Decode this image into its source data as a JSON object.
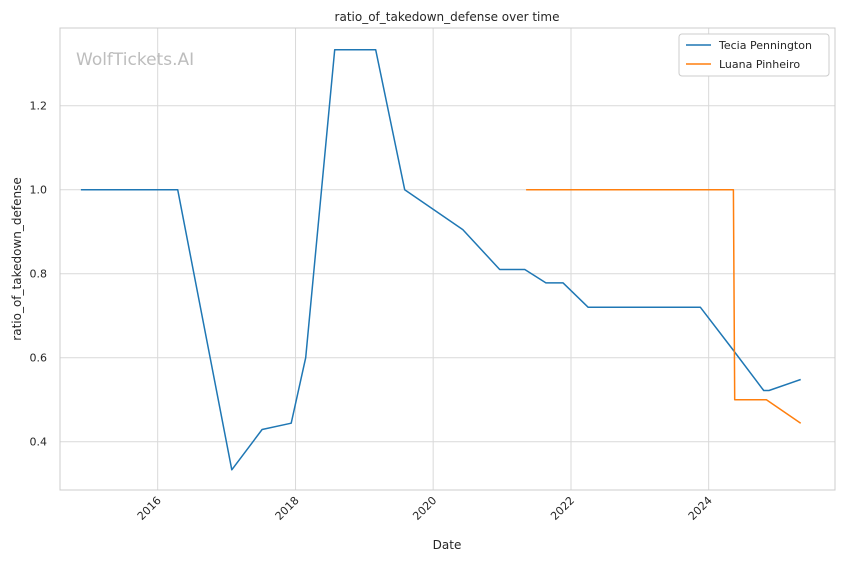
{
  "watermark": "WolfTickets.AI",
  "chart_data": {
    "type": "line",
    "title": "ratio_of_takedown_defense over time",
    "xlabel": "Date",
    "ylabel": "ratio_of_takedown_defense",
    "xlim": [
      "2014-08-01",
      "2025-11-01"
    ],
    "ylim": [
      0.285,
      1.385
    ],
    "x_ticks": [
      "2016-01-01",
      "2018-01-01",
      "2020-01-01",
      "2022-01-01",
      "2024-01-01"
    ],
    "x_tick_labels": [
      "2016",
      "2018",
      "2020",
      "2022",
      "2024"
    ],
    "y_ticks": [
      0.4,
      0.6,
      0.8,
      1.0,
      1.2
    ],
    "y_tick_labels": [
      "0.4",
      "0.6",
      "0.8",
      "1.0",
      "1.2"
    ],
    "grid": true,
    "legend_position": "top-right",
    "series": [
      {
        "name": "Tecia Pennington",
        "color": "#1f77b4",
        "points": [
          {
            "x": "2014-11-20",
            "y": 1.0
          },
          {
            "x": "2016-04-16",
            "y": 1.0
          },
          {
            "x": "2017-01-28",
            "y": 0.333
          },
          {
            "x": "2017-07-08",
            "y": 0.429
          },
          {
            "x": "2017-12-09",
            "y": 0.444
          },
          {
            "x": "2018-02-24",
            "y": 0.6
          },
          {
            "x": "2018-07-28",
            "y": 1.333
          },
          {
            "x": "2019-03-02",
            "y": 1.333
          },
          {
            "x": "2019-08-03",
            "y": 1.0
          },
          {
            "x": "2020-06-06",
            "y": 0.905
          },
          {
            "x": "2020-12-19",
            "y": 0.81
          },
          {
            "x": "2021-05-01",
            "y": 0.81
          },
          {
            "x": "2021-08-21",
            "y": 0.778
          },
          {
            "x": "2021-11-20",
            "y": 0.778
          },
          {
            "x": "2022-04-02",
            "y": 0.72
          },
          {
            "x": "2023-11-18",
            "y": 0.72
          },
          {
            "x": "2024-05-04",
            "y": 0.622
          },
          {
            "x": "2024-10-19",
            "y": 0.522
          },
          {
            "x": "2024-11-16",
            "y": 0.522
          },
          {
            "x": "2025-05-03",
            "y": 0.548
          }
        ]
      },
      {
        "name": "Luana Pinheiro",
        "color": "#ff7f0e",
        "points": [
          {
            "x": "2021-05-08",
            "y": 1.0
          },
          {
            "x": "2024-05-11",
            "y": 1.0
          },
          {
            "x": "2024-05-18",
            "y": 0.5
          },
          {
            "x": "2024-11-02",
            "y": 0.5
          },
          {
            "x": "2025-05-03",
            "y": 0.444
          }
        ]
      }
    ]
  }
}
